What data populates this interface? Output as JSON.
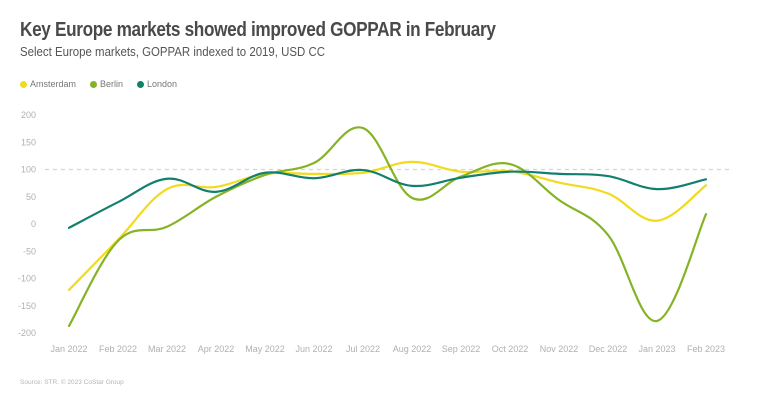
{
  "chart_data": {
    "type": "line",
    "title": "Key Europe markets showed improved GOPPAR in February",
    "subtitle": "Select Europe markets, GOPPAR indexed to 2019, USD CC",
    "xlabel": "",
    "ylabel": "",
    "ylim": [
      -200,
      200
    ],
    "yticks": [
      200,
      150,
      100,
      50,
      0,
      -50,
      -100,
      -150,
      -200
    ],
    "reference_line": 100,
    "legend_position": "top-left",
    "grid": false,
    "x": [
      "Jan 2022",
      "Feb 2022",
      "Mar 2022",
      "Apr 2022",
      "May 2022",
      "Jun 2022",
      "Jul 2022",
      "Aug 2022",
      "Sep 2022",
      "Oct 2022",
      "Nov 2022",
      "Dec 2022",
      "Jan 2023",
      "Feb 2023"
    ],
    "series": [
      {
        "name": "Amsterdam",
        "color": "#F2DA1E",
        "values": [
          -121,
          -29,
          64,
          68,
          92,
          92,
          94,
          114,
          96,
          97,
          76,
          56,
          6,
          71
        ]
      },
      {
        "name": "Berlin",
        "color": "#86B325",
        "values": [
          -187,
          -31,
          -5,
          50,
          90,
          112,
          176,
          48,
          87,
          110,
          44,
          -20,
          -178,
          18
        ]
      },
      {
        "name": "London",
        "color": "#13806E",
        "values": [
          -7,
          40,
          83,
          59,
          94,
          84,
          99,
          70,
          85,
          96,
          92,
          88,
          64,
          82
        ]
      }
    ]
  },
  "footer": {
    "source": "Source: STR. © 2023 CoStar Group"
  }
}
